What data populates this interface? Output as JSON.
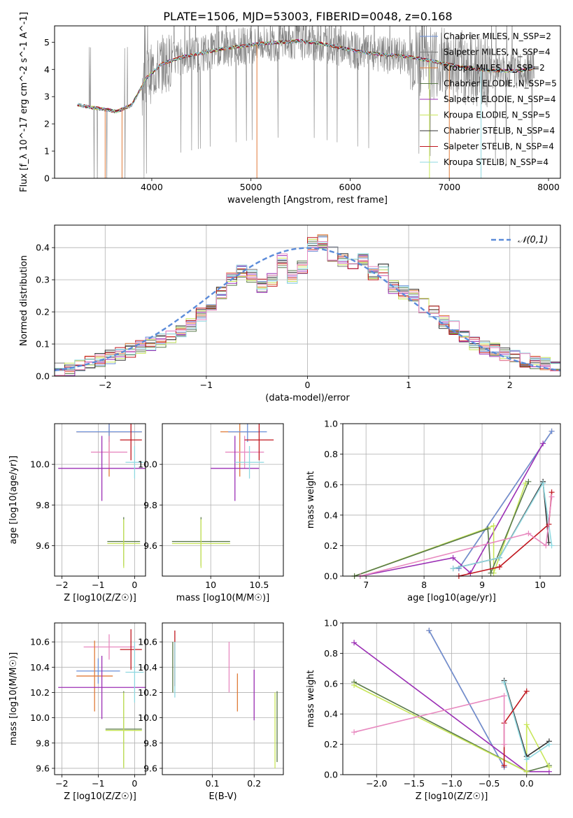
{
  "figure_title": "PLATE=1506, MJD=53003, FIBERID=0048, z=0.168",
  "colors": {
    "chabrier_miles": "#6a8fd8",
    "salpeter_miles": "#7a7a7a",
    "kroupa_miles": "#e07b39",
    "chabrier_elodie": "#5a7a4a",
    "salpeter_elodie": "#9b2fb5",
    "kroupa_elodie": "#c8e65a",
    "chabrier_stelib": "#333333",
    "salpeter_stelib": "#c0161e",
    "kroupa_stelib": "#8fd8e0",
    "pink": "#e88ac0",
    "data": "#808080",
    "normal": "#5b8bd9"
  },
  "chart_data": [
    {
      "id": "spectrum",
      "type": "line",
      "title": "PLATE=1506, MJD=53003, FIBERID=0048, z=0.168",
      "xlabel": "wavelength [Angstrom, rest frame]",
      "ylabel": "Flux [f_λ 10^-17 erg cm^-2 s^-1 A^-1]",
      "xlim": [
        3020,
        8120
      ],
      "ylim": [
        0,
        5.6
      ],
      "xticks": [
        4000,
        5000,
        6000,
        7000,
        8000
      ],
      "yticks": [
        0,
        1,
        2,
        3,
        4,
        5
      ],
      "legend": "top-right",
      "series": [
        {
          "name": "Chabrier MILES, N_SSP=2",
          "color": "#6a8fd8"
        },
        {
          "name": "Salpeter MILES, N_SSP=4",
          "color": "#7a7a7a"
        },
        {
          "name": "Kroupa MILES, N_SSP=2",
          "color": "#e07b39"
        },
        {
          "name": "Chabrier ELODIE, N_SSP=5",
          "color": "#5a7a4a"
        },
        {
          "name": "Salpeter ELODIE, N_SSP=4",
          "color": "#9b2fb5"
        },
        {
          "name": "Kroupa ELODIE, N_SSP=5",
          "color": "#c8e65a"
        },
        {
          "name": "Chabrier STELIB, N_SSP=4",
          "color": "#333333"
        },
        {
          "name": "Salpeter STELIB, N_SSP=4",
          "color": "#c0161e"
        },
        {
          "name": "Kroupa STELIB, N_SSP=4",
          "color": "#8fd8e0"
        }
      ],
      "continuum": {
        "x": [
          3250,
          3400,
          3500,
          3650,
          3800,
          3950,
          4100,
          4300,
          4500,
          4700,
          4900,
          5100,
          5300,
          5500,
          5700,
          5900,
          6100,
          6300,
          6500,
          6700,
          6900,
          7100,
          7300,
          7500,
          7700,
          7850
        ],
        "y": [
          2.7,
          2.6,
          2.55,
          2.45,
          2.7,
          3.7,
          4.2,
          4.45,
          4.6,
          4.75,
          4.85,
          4.95,
          5.0,
          5.05,
          4.95,
          4.8,
          4.65,
          4.55,
          4.5,
          4.4,
          4.25,
          4.1,
          4.0,
          3.95,
          3.95,
          4.05
        ]
      }
    },
    {
      "id": "residuals",
      "type": "bar",
      "xlabel": "(data-model)/error",
      "ylabel": "Normed distribution",
      "xlim": [
        -2.5,
        2.5
      ],
      "ylim": [
        0,
        0.47
      ],
      "xticks": [
        -2,
        -1,
        0,
        1,
        2
      ],
      "yticks": [
        0.0,
        0.1,
        0.2,
        0.3,
        0.4
      ],
      "legend_label": "𝒩(0,1)",
      "bin_edges_start": -2.5,
      "bin_width": 0.1,
      "histogram": [
        0.02,
        0.02,
        0.03,
        0.04,
        0.05,
        0.06,
        0.07,
        0.08,
        0.09,
        0.1,
        0.11,
        0.12,
        0.14,
        0.16,
        0.19,
        0.22,
        0.26,
        0.3,
        0.33,
        0.31,
        0.28,
        0.3,
        0.36,
        0.31,
        0.34,
        0.41,
        0.42,
        0.38,
        0.36,
        0.35,
        0.36,
        0.32,
        0.33,
        0.28,
        0.26,
        0.25,
        0.22,
        0.2,
        0.17,
        0.15,
        0.12,
        0.1,
        0.09,
        0.08,
        0.07,
        0.06,
        0.05,
        0.04,
        0.04,
        0.03
      ]
    },
    {
      "id": "age_vs_Z",
      "type": "scatter",
      "xlabel": "Z [log10(Z/Z☉)]",
      "ylabel": "age [log10(age/yr)]",
      "xlim": [
        -2.2,
        0.3
      ],
      "ylim": [
        9.45,
        10.2
      ],
      "xticks": [
        -2,
        -1,
        0
      ],
      "yticks": [
        9.6,
        9.8,
        10.0
      ],
      "points": [
        {
          "color": "#e07b39",
          "x": -0.7,
          "y": 10.16,
          "ex": 0.9,
          "ey": 0.22
        },
        {
          "color": "#6a8fd8",
          "x": -0.7,
          "y": 10.16,
          "ex": 0.9,
          "ey": 0.05
        },
        {
          "color": "#e88ac0",
          "x": -0.7,
          "y": 10.06,
          "ex": 0.5,
          "ey": 0.08
        },
        {
          "color": "#9b2fb5",
          "x": -0.9,
          "y": 9.98,
          "ex": 1.2,
          "ey": 0.16
        },
        {
          "color": "#c0161e",
          "x": -0.1,
          "y": 10.12,
          "ex": 0.3,
          "ey": 0.1
        },
        {
          "color": "#8fd8e0",
          "x": 0.0,
          "y": 10.01,
          "ex": 0.25,
          "ey": 0.08
        },
        {
          "color": "#5a7a4a",
          "x": -0.3,
          "y": 9.62,
          "ex": 0.45,
          "ey": 0.12
        },
        {
          "color": "#c8e65a",
          "x": -0.3,
          "y": 9.61,
          "ex": 0.45,
          "ey": 0.12
        }
      ]
    },
    {
      "id": "age_vs_mass",
      "type": "scatter",
      "xlabel": "mass [log10(M/M☉)]",
      "xlim": [
        9.5,
        10.75
      ],
      "ylim": [
        9.45,
        10.2
      ],
      "xticks": [
        10.0,
        10.5
      ],
      "yticks": [
        9.6,
        9.8,
        10.0
      ],
      "points": [
        {
          "color": "#e07b39",
          "x": 10.3,
          "y": 10.16,
          "ex": 0.2,
          "ey": 0.22
        },
        {
          "color": "#6a8fd8",
          "x": 10.38,
          "y": 10.16,
          "ex": 0.2,
          "ey": 0.05
        },
        {
          "color": "#e88ac0",
          "x": 10.35,
          "y": 10.06,
          "ex": 0.2,
          "ey": 0.08
        },
        {
          "color": "#9b2fb5",
          "x": 10.25,
          "y": 9.98,
          "ex": 0.25,
          "ey": 0.16
        },
        {
          "color": "#c0161e",
          "x": 10.5,
          "y": 10.12,
          "ex": 0.15,
          "ey": 0.1
        },
        {
          "color": "#8fd8e0",
          "x": 10.4,
          "y": 10.01,
          "ex": 0.15,
          "ey": 0.08
        },
        {
          "color": "#5a7a4a",
          "x": 9.9,
          "y": 9.62,
          "ex": 0.3,
          "ey": 0.12
        },
        {
          "color": "#c8e65a",
          "x": 9.9,
          "y": 9.61,
          "ex": 0.3,
          "ey": 0.12
        }
      ]
    },
    {
      "id": "mass_weight_vs_age",
      "type": "line",
      "xlabel": "age [log10(age/yr)]",
      "ylabel": "mass weight",
      "xlim": [
        6.6,
        10.35
      ],
      "ylim": [
        0,
        1.0
      ],
      "xticks": [
        7,
        8,
        9,
        10
      ],
      "yticks": [
        0.0,
        0.2,
        0.4,
        0.6,
        0.8,
        1.0
      ],
      "series": [
        {
          "color": "#e07b39",
          "x": [
            8.6,
            10.2
          ],
          "y": [
            0.05,
            0.95
          ]
        },
        {
          "color": "#6a8fd8",
          "x": [
            8.6,
            10.2
          ],
          "y": [
            0.05,
            0.95
          ]
        },
        {
          "color": "#9b2fb5",
          "x": [
            6.9,
            8.5,
            8.8,
            10.05
          ],
          "y": [
            0.0,
            0.12,
            0.02,
            0.87
          ]
        },
        {
          "color": "#c8e65a",
          "x": [
            6.8,
            9.2,
            9.2,
            9.75
          ],
          "y": [
            0.0,
            0.33,
            0.02,
            0.61
          ]
        },
        {
          "color": "#5a7a4a",
          "x": [
            6.8,
            9.1,
            9.15,
            9.8
          ],
          "y": [
            0.0,
            0.31,
            0.02,
            0.62
          ]
        },
        {
          "color": "#333333",
          "x": [
            8.5,
            9.3,
            10.05,
            10.15
          ],
          "y": [
            0.05,
            0.12,
            0.62,
            0.22
          ]
        },
        {
          "color": "#8fd8e0",
          "x": [
            8.5,
            9.3,
            10.05,
            10.2
          ],
          "y": [
            0.05,
            0.12,
            0.61,
            0.2
          ]
        },
        {
          "color": "#c0161e",
          "x": [
            8.6,
            9.3,
            10.15,
            10.2
          ],
          "y": [
            0.0,
            0.06,
            0.34,
            0.55
          ]
        },
        {
          "color": "#e88ac0",
          "x": [
            6.9,
            9.8,
            10.1,
            10.2
          ],
          "y": [
            0.0,
            0.28,
            0.2,
            0.52
          ]
        }
      ]
    },
    {
      "id": "mass_vs_Z",
      "type": "scatter",
      "xlabel": "Z [log10(Z/Z☉)]",
      "ylabel": "mass [log10(M/M☉)]",
      "xlim": [
        -2.2,
        0.3
      ],
      "ylim": [
        9.55,
        10.75
      ],
      "xticks": [
        -2,
        -1,
        0
      ],
      "yticks": [
        9.6,
        9.8,
        10.0,
        10.2,
        10.4,
        10.6
      ],
      "points": [
        {
          "color": "#e88ac0",
          "x": -0.7,
          "y": 10.56,
          "ex": 0.7,
          "ey": 0.1
        },
        {
          "color": "#6a8fd8",
          "x": -1.0,
          "y": 10.37,
          "ex": 0.6,
          "ey": 0.1
        },
        {
          "color": "#e07b39",
          "x": -1.1,
          "y": 10.33,
          "ex": 0.5,
          "ey": 0.28
        },
        {
          "color": "#9b2fb5",
          "x": -0.9,
          "y": 10.24,
          "ex": 1.2,
          "ey": 0.25
        },
        {
          "color": "#c0161e",
          "x": -0.1,
          "y": 10.54,
          "ex": 0.3,
          "ey": 0.16
        },
        {
          "color": "#8fd8e0",
          "x": 0.0,
          "y": 10.36,
          "ex": 0.25,
          "ey": 0.24
        },
        {
          "color": "#5a7a4a",
          "x": -0.3,
          "y": 9.91,
          "ex": 0.5,
          "ey": 0.3
        },
        {
          "color": "#c8e65a",
          "x": -0.3,
          "y": 9.9,
          "ex": 0.5,
          "ey": 0.3
        }
      ]
    },
    {
      "id": "mass_vs_ebv",
      "type": "scatter",
      "xlabel": "E(B-V)",
      "xlim": [
        -0.02,
        0.27
      ],
      "ylim": [
        9.55,
        10.75
      ],
      "xticks": [
        0.1,
        0.2
      ],
      "yticks": [
        9.6,
        9.8,
        10.0,
        10.2,
        10.4,
        10.6
      ],
      "points": [
        {
          "color": "#c0161e",
          "x": 0.01,
          "y": 10.47,
          "ey": 0.22
        },
        {
          "color": "#8fd8e0",
          "x": 0.01,
          "y": 10.38,
          "ey": 0.22
        },
        {
          "color": "#5a7a4a",
          "x": 0.005,
          "y": 10.4,
          "ey": 0.2
        },
        {
          "color": "#e88ac0",
          "x": 0.14,
          "y": 10.4,
          "ey": 0.2
        },
        {
          "color": "#e07b39",
          "x": 0.16,
          "y": 10.2,
          "ey": 0.15
        },
        {
          "color": "#9b2fb5",
          "x": 0.2,
          "y": 10.18,
          "ey": 0.2
        },
        {
          "color": "#c8e65a",
          "x": 0.25,
          "y": 9.9,
          "ey": 0.3
        },
        {
          "color": "#5a7a4a",
          "x": 0.255,
          "y": 9.93,
          "ey": 0.28
        }
      ]
    },
    {
      "id": "mass_weight_vs_Z",
      "type": "line",
      "xlabel": "Z [log10(Z/Z☉)]",
      "ylabel": "mass weight",
      "xlim": [
        -2.45,
        0.45
      ],
      "ylim": [
        0,
        1.0
      ],
      "xticks": [
        -2.0,
        -1.5,
        -1.0,
        -0.5,
        0.0
      ],
      "yticks": [
        0.0,
        0.2,
        0.4,
        0.6,
        0.8,
        1.0
      ],
      "series": [
        {
          "color": "#e07b39",
          "x": [
            -1.3,
            -0.3
          ],
          "y": [
            0.95,
            0.05
          ]
        },
        {
          "color": "#6a8fd8",
          "x": [
            -1.3,
            -0.3
          ],
          "y": [
            0.95,
            0.05
          ]
        },
        {
          "color": "#9b2fb5",
          "x": [
            -2.3,
            0.0,
            0.3
          ],
          "y": [
            0.87,
            0.02,
            0.02
          ]
        },
        {
          "color": "#5a7a4a",
          "x": [
            -2.3,
            0.0,
            0.3
          ],
          "y": [
            0.61,
            0.02,
            0.06
          ]
        },
        {
          "color": "#c8e65a",
          "x": [
            -2.3,
            0.0,
            0.0,
            0.3
          ],
          "y": [
            0.59,
            0.02,
            0.33,
            0.05
          ]
        },
        {
          "color": "#333333",
          "x": [
            -0.3,
            0.0,
            0.3
          ],
          "y": [
            0.62,
            0.12,
            0.22
          ]
        },
        {
          "color": "#8fd8e0",
          "x": [
            -0.3,
            0.0,
            0.3
          ],
          "y": [
            0.61,
            0.1,
            0.2
          ]
        },
        {
          "color": "#c0161e",
          "x": [
            -0.3,
            -0.3,
            0.0
          ],
          "y": [
            0.06,
            0.34,
            0.55
          ]
        },
        {
          "color": "#e88ac0",
          "x": [
            -2.3,
            -0.3,
            -0.3
          ],
          "y": [
            0.28,
            0.52,
            0.2
          ]
        }
      ]
    }
  ]
}
